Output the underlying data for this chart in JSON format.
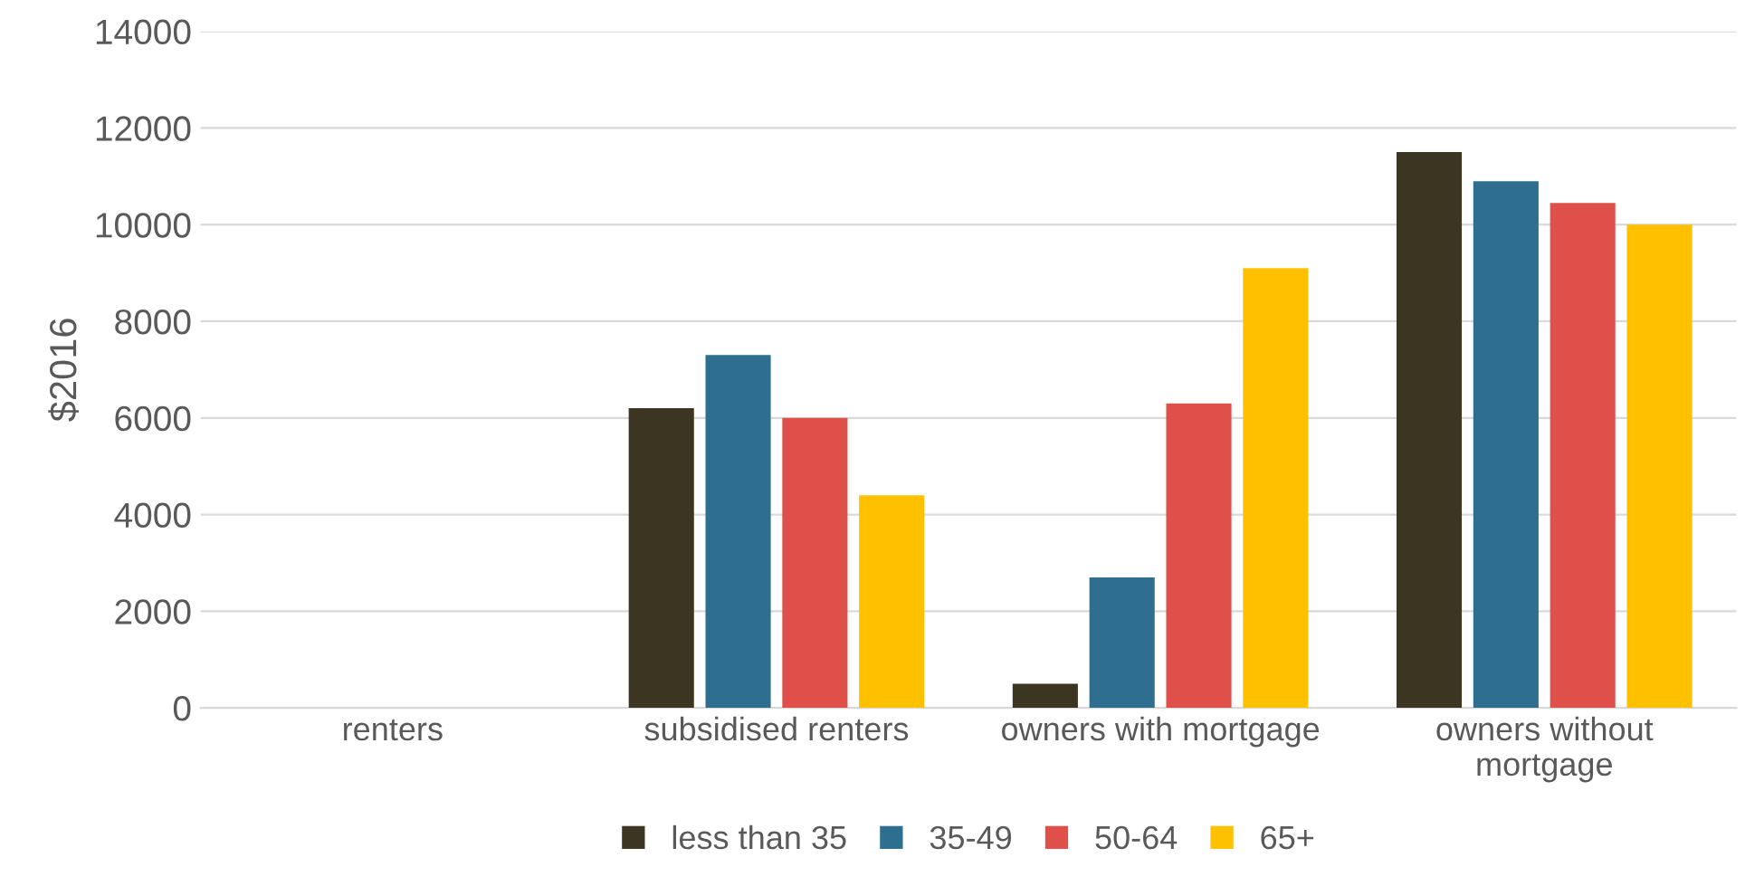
{
  "chart_data": {
    "type": "bar",
    "ylabel": "$2016",
    "categories": [
      "renters",
      "subsidised renters",
      "owners with mortgage",
      "owners without\nmortgage"
    ],
    "series": [
      {
        "name": "less than 35",
        "color": "#3b3522",
        "values": [
          0,
          6200,
          500,
          11500
        ]
      },
      {
        "name": "35-49",
        "color": "#2e6e8e",
        "values": [
          0,
          7300,
          2700,
          10900
        ]
      },
      {
        "name": "50-64",
        "color": "#e0504a",
        "values": [
          0,
          6000,
          6300,
          10450
        ]
      },
      {
        "name": "65+",
        "color": "#ffc000",
        "values": [
          0,
          4400,
          9100,
          10000
        ]
      }
    ],
    "ylim": [
      0,
      14000
    ],
    "yticks": [
      0,
      2000,
      4000,
      6000,
      8000,
      10000,
      12000,
      14000
    ],
    "grid": "y",
    "legend": "bottom"
  }
}
